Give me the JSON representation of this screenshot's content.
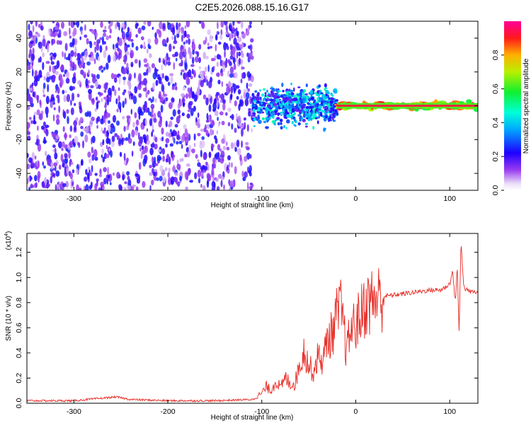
{
  "title": "C2E5.2026.088.15.16.G17",
  "colors": {
    "snr_line": "#e82a24",
    "axis": "#000000",
    "background": "#ffffff"
  },
  "chart_data": [
    {
      "type": "heatmap",
      "title": "C2E5.2026.088.15.16.G17",
      "xlabel": "Height of straight line (km)",
      "ylabel": "Frequency (Hz)",
      "xlim": [
        -350,
        130
      ],
      "ylim": [
        -50,
        50
      ],
      "x_ticks": [
        -300,
        -200,
        -100,
        0,
        100
      ],
      "y_ticks": [
        -40,
        -20,
        0,
        20,
        40
      ],
      "x_tick_labels": [
        "-300",
        "-200",
        "-100",
        "0",
        "100"
      ],
      "y_tick_labels": [
        "-40",
        "-20",
        "0",
        "20",
        "40"
      ],
      "colorbar": {
        "label": "Normalized spectral amplitude",
        "range": [
          0,
          1
        ],
        "ticks": [
          0.0,
          0.2,
          0.4,
          0.6,
          0.8
        ],
        "tick_labels": [
          "0.0",
          "0.2",
          "0.4",
          "0.6",
          "0.8"
        ],
        "colormap": "rainbow (white-violet-blue-cyan-green-yellow-red-magenta)"
      },
      "regions": [
        {
          "x_range": [
            -350,
            -110
          ],
          "description_level": 0.2,
          "frequency_spread_hz": [
            -50,
            50
          ]
        },
        {
          "x_range": [
            -110,
            -20
          ],
          "description_level": 0.35,
          "frequency_spread_hz": [
            -15,
            15
          ]
        },
        {
          "x_range": [
            -20,
            130
          ],
          "description_level": 0.9,
          "frequency_spread_hz": [
            -3,
            3
          ]
        }
      ]
    },
    {
      "type": "line",
      "xlabel": "Height of straight line (km)",
      "ylabel": "SNR (10 * v/v)",
      "y_scale_label": "(x10",
      "y_scale_exponent": "4",
      "xlim": [
        -350,
        130
      ],
      "ylim": [
        0,
        1.35
      ],
      "x_ticks": [
        -300,
        -200,
        -100,
        0,
        100
      ],
      "y_ticks": [
        0.0,
        0.2,
        0.4,
        0.6,
        0.8,
        1.0,
        1.2
      ],
      "x_tick_labels": [
        "-300",
        "-200",
        "-100",
        "0",
        "100"
      ],
      "y_tick_labels": [
        "0.0",
        "0.2",
        "0.4",
        "0.6",
        "0.8",
        "1.0",
        "1.2"
      ],
      "series": [
        {
          "x": [
            -350,
            -300,
            -270,
            -255,
            -240,
            -200,
            -150,
            -110,
            -100,
            -95,
            -90,
            -85,
            -80,
            -75,
            -70,
            -65,
            -60,
            -55,
            -50,
            -45,
            -40,
            -35,
            -30,
            -25,
            -20,
            -15,
            -12,
            -10,
            -5,
            0,
            5,
            10,
            20,
            30,
            40,
            60,
            80,
            90,
            95,
            100,
            103,
            106,
            108,
            110,
            112,
            115,
            120,
            130
          ],
          "y": [
            0.02,
            0.02,
            0.04,
            0.05,
            0.03,
            0.02,
            0.02,
            0.03,
            0.08,
            0.13,
            0.1,
            0.18,
            0.12,
            0.2,
            0.16,
            0.15,
            0.3,
            0.42,
            0.3,
            0.25,
            0.38,
            0.33,
            0.52,
            0.55,
            0.7,
            0.75,
            0.55,
            0.4,
            0.6,
            0.62,
            0.7,
            0.78,
            0.83,
            0.85,
            0.86,
            0.88,
            0.9,
            0.9,
            0.92,
            0.95,
            1.05,
            0.8,
            1.1,
            0.55,
            1.3,
            0.92,
            0.89,
            0.88
          ]
        }
      ]
    }
  ]
}
